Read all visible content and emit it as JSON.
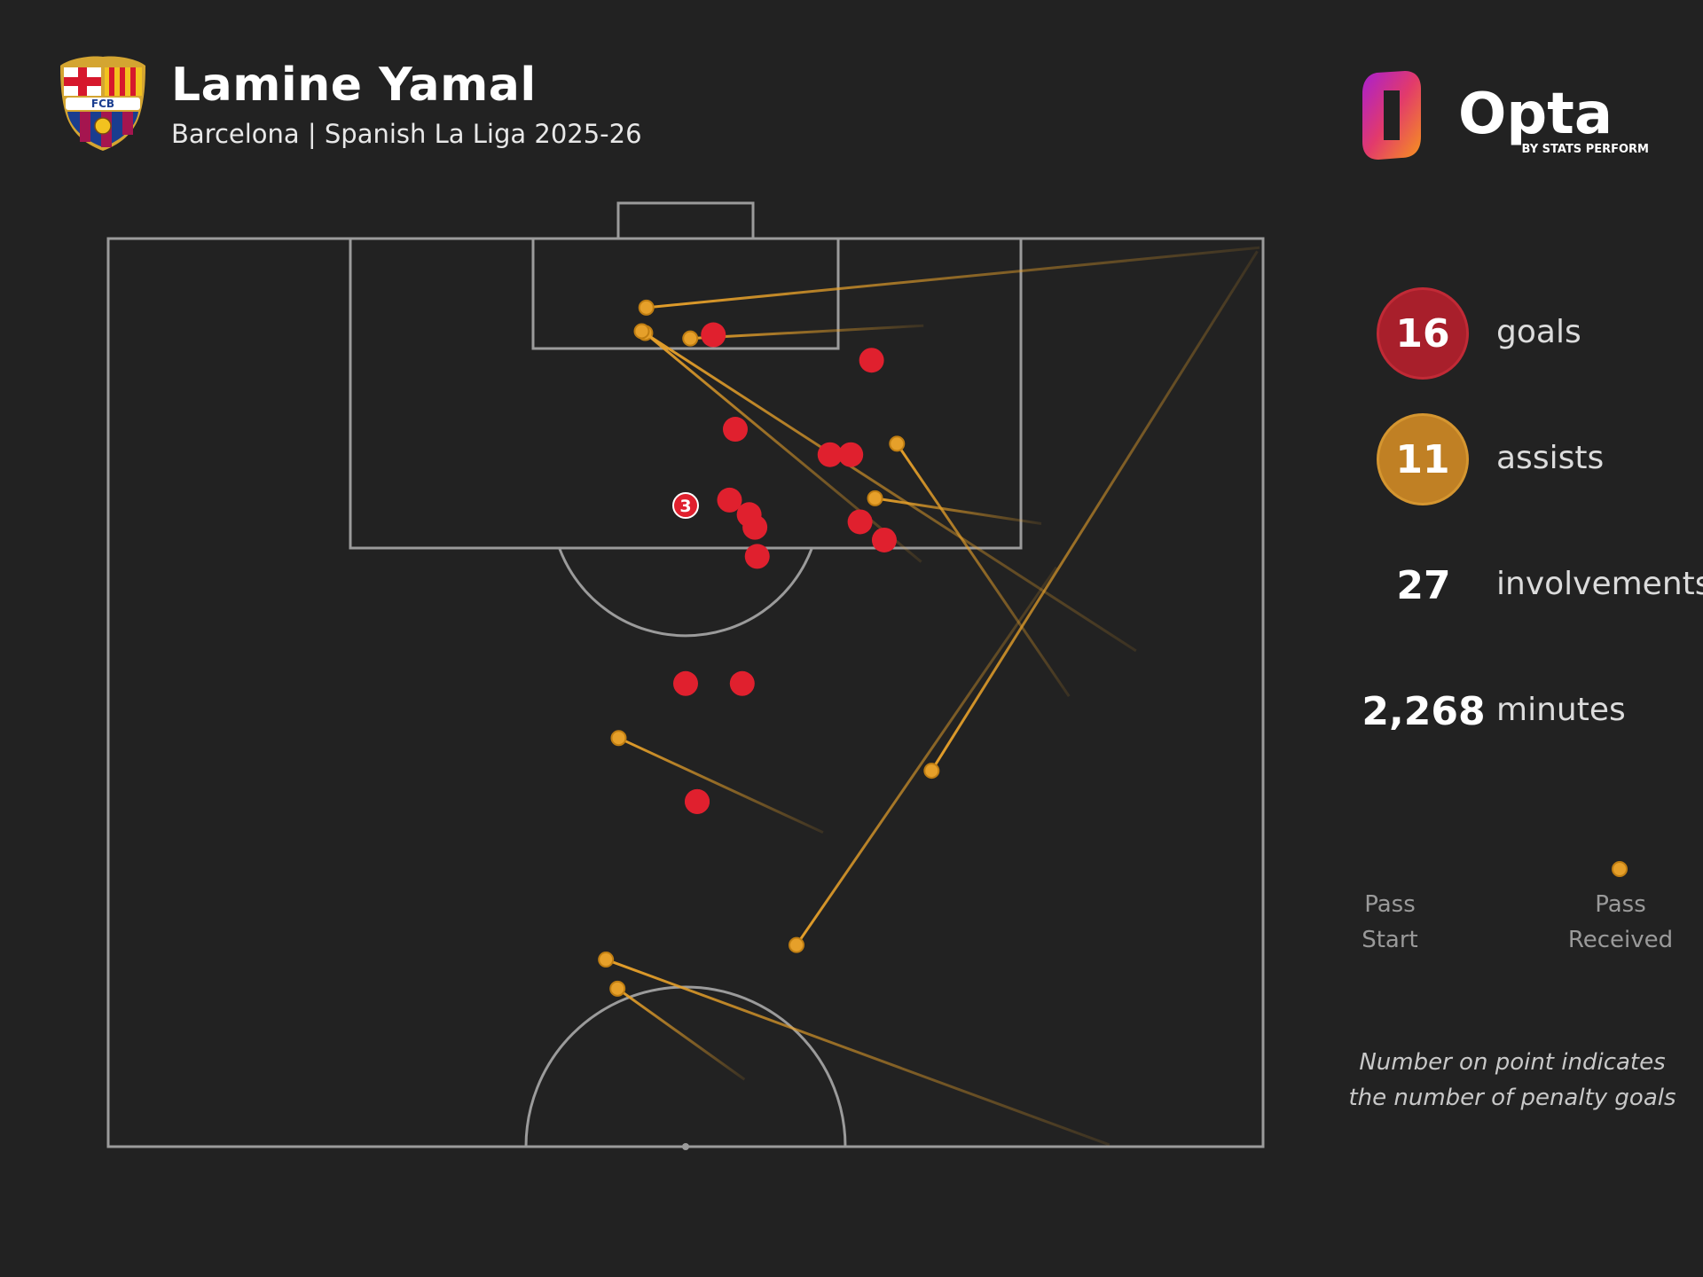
{
  "header": {
    "title": "Lamine Yamal",
    "subtitle": "Barcelona | Spanish La Liga 2025-26"
  },
  "crest": {
    "lettering": "FCB"
  },
  "brand": {
    "name": "Opta",
    "tagline": "BY STATS PERFORM"
  },
  "stats": {
    "goals": {
      "value": "16",
      "label": "goals"
    },
    "assists": {
      "value": "11",
      "label": "assists"
    },
    "involvements": {
      "value": "27",
      "label": "involvements"
    },
    "minutes": {
      "value": "2,268",
      "label": "minutes"
    }
  },
  "legend": {
    "start_line1": "Pass",
    "start_line2": "Start",
    "end_line1": "Pass",
    "end_line2": "Received"
  },
  "note": {
    "line1": "Number on point indicates",
    "line2": "the number of penalty goals"
  },
  "colors": {
    "background": "#222222",
    "pitch_lines": "#9b9b9b",
    "goal": "#e0202e",
    "goal_circle": "#a81f2b",
    "assist": "#e6a02a",
    "assist_circle": "#c08024",
    "legend_muted": "#9a9a9a"
  },
  "chart_data": {
    "type": "scatter",
    "units": "percent of pitch width (x, 0-100 left to right) and percent of full pitch length from own goal (y, 50 = halfway line, 100 = attacking goal line)",
    "xlim": [
      0,
      100
    ],
    "ylim": [
      50,
      100
    ],
    "goals": [
      {
        "x": 52.4,
        "y": 94.7
      },
      {
        "x": 66.1,
        "y": 93.3
      },
      {
        "x": 54.3,
        "y": 89.5
      },
      {
        "x": 62.5,
        "y": 88.1
      },
      {
        "x": 64.3,
        "y": 88.1
      },
      {
        "x": 50.0,
        "y": 85.3,
        "penalty_goals": 3
      },
      {
        "x": 53.8,
        "y": 85.6
      },
      {
        "x": 55.5,
        "y": 84.8
      },
      {
        "x": 56.0,
        "y": 84.1
      },
      {
        "x": 65.1,
        "y": 84.4
      },
      {
        "x": 67.2,
        "y": 83.4
      },
      {
        "x": 56.2,
        "y": 82.5
      },
      {
        "x": 54.9,
        "y": 75.5
      },
      {
        "x": 50.0,
        "y": 75.5
      },
      {
        "x": 51.0,
        "y": 69.0
      },
      {
        "x": 51.0,
        "y": 69.0
      }
    ],
    "assists": [
      {
        "start": {
          "x": 99.7,
          "y": 99.5
        },
        "end": {
          "x": 46.6,
          "y": 96.2
        }
      },
      {
        "start": {
          "x": 70.6,
          "y": 95.2
        },
        "end": {
          "x": 50.4,
          "y": 94.5
        }
      },
      {
        "start": {
          "x": 70.4,
          "y": 82.2
        },
        "end": {
          "x": 46.5,
          "y": 94.8
        }
      },
      {
        "start": {
          "x": 89.0,
          "y": 77.3
        },
        "end": {
          "x": 46.2,
          "y": 94.9
        }
      },
      {
        "start": {
          "x": 80.8,
          "y": 84.3
        },
        "end": {
          "x": 66.4,
          "y": 85.7
        }
      },
      {
        "start": {
          "x": 83.2,
          "y": 74.8
        },
        "end": {
          "x": 68.3,
          "y": 88.7
        }
      },
      {
        "start": {
          "x": 99.5,
          "y": 99.3
        },
        "end": {
          "x": 71.3,
          "y": 70.7
        }
      },
      {
        "start": {
          "x": 82.1,
          "y": 81.9
        },
        "end": {
          "x": 59.6,
          "y": 61.1
        }
      },
      {
        "start": {
          "x": 61.9,
          "y": 67.3
        },
        "end": {
          "x": 44.2,
          "y": 72.5
        }
      },
      {
        "start": {
          "x": 86.7,
          "y": 50.1
        },
        "end": {
          "x": 43.1,
          "y": 60.3
        }
      },
      {
        "start": {
          "x": 55.1,
          "y": 53.7
        },
        "end": {
          "x": 44.1,
          "y": 58.7
        }
      }
    ]
  }
}
